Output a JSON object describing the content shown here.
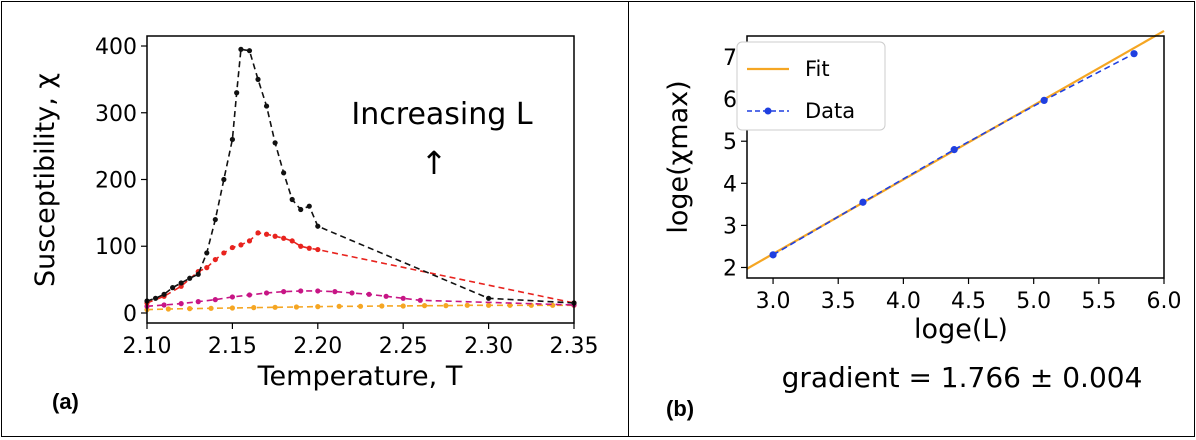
{
  "chart_data": [
    {
      "type": "line",
      "panel_label": "(a)",
      "xlabel": "Temperature, T",
      "ylabel": "Susceptibility, χ",
      "xlim": [
        2.1,
        2.35
      ],
      "ylim": [
        -15,
        415
      ],
      "x_ticks": [
        "2.10",
        "2.15",
        "2.20",
        "2.25",
        "2.30",
        "2.35"
      ],
      "y_ticks": [
        "0",
        "100",
        "200",
        "300",
        "400"
      ],
      "annotation": "Increasing L",
      "annotation_arrow": "↑",
      "grid": false,
      "series": [
        {
          "color": "#f5a623",
          "style": "dashed-markers",
          "x": [
            2.1,
            2.1125,
            2.125,
            2.1375,
            2.15,
            2.1625,
            2.175,
            2.1875,
            2.2,
            2.2125,
            2.225,
            2.2375,
            2.25,
            2.2625,
            2.275,
            2.2875,
            2.3,
            2.3125,
            2.325,
            2.3375,
            2.35
          ],
          "y": [
            5,
            6,
            6.5,
            7,
            7.5,
            8,
            8.5,
            9,
            9.5,
            10,
            10,
            10.5,
            10.5,
            11,
            11,
            11.5,
            11.5,
            11.5,
            11.5,
            11.5,
            11.5
          ]
        },
        {
          "color": "#c71585",
          "style": "dashed-markers",
          "x": [
            2.1,
            2.11,
            2.12,
            2.13,
            2.14,
            2.15,
            2.16,
            2.17,
            2.18,
            2.19,
            2.2,
            2.21,
            2.22,
            2.23,
            2.24,
            2.25,
            2.26,
            2.35
          ],
          "y": [
            10,
            12,
            14,
            17,
            20,
            24,
            27,
            30,
            32,
            33,
            33,
            32,
            30,
            28,
            25,
            22,
            19,
            12
          ]
        },
        {
          "color": "#e8231e",
          "style": "dashed-markers",
          "x": [
            2.1,
            2.11,
            2.12,
            2.13,
            2.135,
            2.14,
            2.145,
            2.15,
            2.155,
            2.16,
            2.165,
            2.17,
            2.175,
            2.18,
            2.185,
            2.19,
            2.195,
            2.2,
            2.35
          ],
          "y": [
            15,
            25,
            40,
            62,
            68,
            80,
            90,
            98,
            102,
            108,
            120,
            118,
            115,
            112,
            108,
            100,
            97,
            95,
            15
          ]
        },
        {
          "color": "#111111",
          "style": "dashed-markers",
          "x": [
            2.1,
            2.105,
            2.11,
            2.115,
            2.12,
            2.125,
            2.13,
            2.135,
            2.14,
            2.145,
            2.15,
            2.1525,
            2.155,
            2.16,
            2.165,
            2.17,
            2.175,
            2.18,
            2.185,
            2.19,
            2.195,
            2.2,
            2.3,
            2.35
          ],
          "y": [
            18,
            22,
            28,
            38,
            45,
            52,
            58,
            90,
            140,
            200,
            260,
            330,
            395,
            393,
            350,
            310,
            255,
            210,
            170,
            155,
            160,
            130,
            22,
            15
          ]
        }
      ]
    },
    {
      "type": "line",
      "panel_label": "(b)",
      "xlabel": "loge(L)",
      "ylabel": "loge(χmax)",
      "footer": "gradient = 1.766 ± 0.004",
      "xlim": [
        2.8,
        6.0
      ],
      "ylim": [
        1.75,
        7.5
      ],
      "x_ticks": [
        "3.0",
        "3.5",
        "4.0",
        "4.5",
        "5.0",
        "5.5",
        "6.0"
      ],
      "y_ticks": [
        "2",
        "3",
        "4",
        "5",
        "6",
        "7"
      ],
      "legend_position": "top-left",
      "grid": false,
      "series": [
        {
          "name": "Fit",
          "color": "#f5a623",
          "style": "solid",
          "x": [
            2.8,
            6.0
          ],
          "y": [
            1.97,
            7.62
          ]
        },
        {
          "name": "Data",
          "color": "#1f3fe0",
          "style": "dashed-markers",
          "x": [
            3.0,
            3.69,
            4.39,
            5.08,
            5.77
          ],
          "y": [
            2.3,
            3.55,
            4.8,
            5.97,
            7.08
          ]
        }
      ]
    }
  ]
}
